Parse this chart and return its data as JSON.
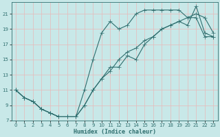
{
  "xlabel": "Humidex (Indice chaleur)",
  "bg_color": "#c8e8e8",
  "grid_color": "#e8b8b8",
  "line_color": "#2e6e6e",
  "xlim": [
    -0.5,
    23.5
  ],
  "ylim": [
    7,
    22.5
  ],
  "xticks": [
    0,
    1,
    2,
    3,
    4,
    5,
    6,
    7,
    8,
    9,
    10,
    11,
    12,
    13,
    14,
    15,
    16,
    17,
    18,
    19,
    20,
    21,
    22,
    23
  ],
  "yticks": [
    7,
    9,
    11,
    13,
    15,
    17,
    19,
    21
  ],
  "line1_x": [
    0,
    1,
    2,
    3,
    4,
    5,
    6,
    7,
    8,
    9,
    10,
    11,
    12,
    13,
    14,
    15,
    16,
    17,
    18,
    19,
    20,
    21,
    22,
    23
  ],
  "line1_y": [
    11,
    10,
    9.5,
    8.5,
    8,
    7.5,
    7.5,
    7.5,
    9,
    11,
    12.5,
    13.5,
    15,
    16,
    16.5,
    17.5,
    18,
    19,
    19.5,
    20,
    20.5,
    20.5,
    18,
    18
  ],
  "line2_x": [
    0,
    1,
    2,
    3,
    4,
    5,
    6,
    7,
    8,
    9,
    10,
    11,
    12,
    13,
    14,
    15,
    16,
    17,
    18,
    19,
    20,
    21,
    22,
    23
  ],
  "line2_y": [
    11,
    10,
    9.5,
    8.5,
    8,
    7.5,
    7.5,
    7.5,
    11,
    15,
    18.5,
    20,
    19,
    19.5,
    21,
    21.5,
    21.5,
    21.5,
    21.5,
    21.5,
    20.5,
    21,
    20.5,
    18.5
  ],
  "line3_x": [
    0,
    1,
    2,
    3,
    4,
    5,
    6,
    7,
    8,
    9,
    10,
    11,
    12,
    13,
    14,
    15,
    16,
    17,
    18,
    19,
    20,
    21,
    22,
    23
  ],
  "line3_y": [
    11,
    10,
    9.5,
    8.5,
    8,
    7.5,
    7.5,
    7.5,
    9,
    11,
    12.5,
    14,
    14,
    15.5,
    15,
    17,
    18,
    19,
    19.5,
    20,
    19.5,
    22,
    18.5,
    18
  ]
}
